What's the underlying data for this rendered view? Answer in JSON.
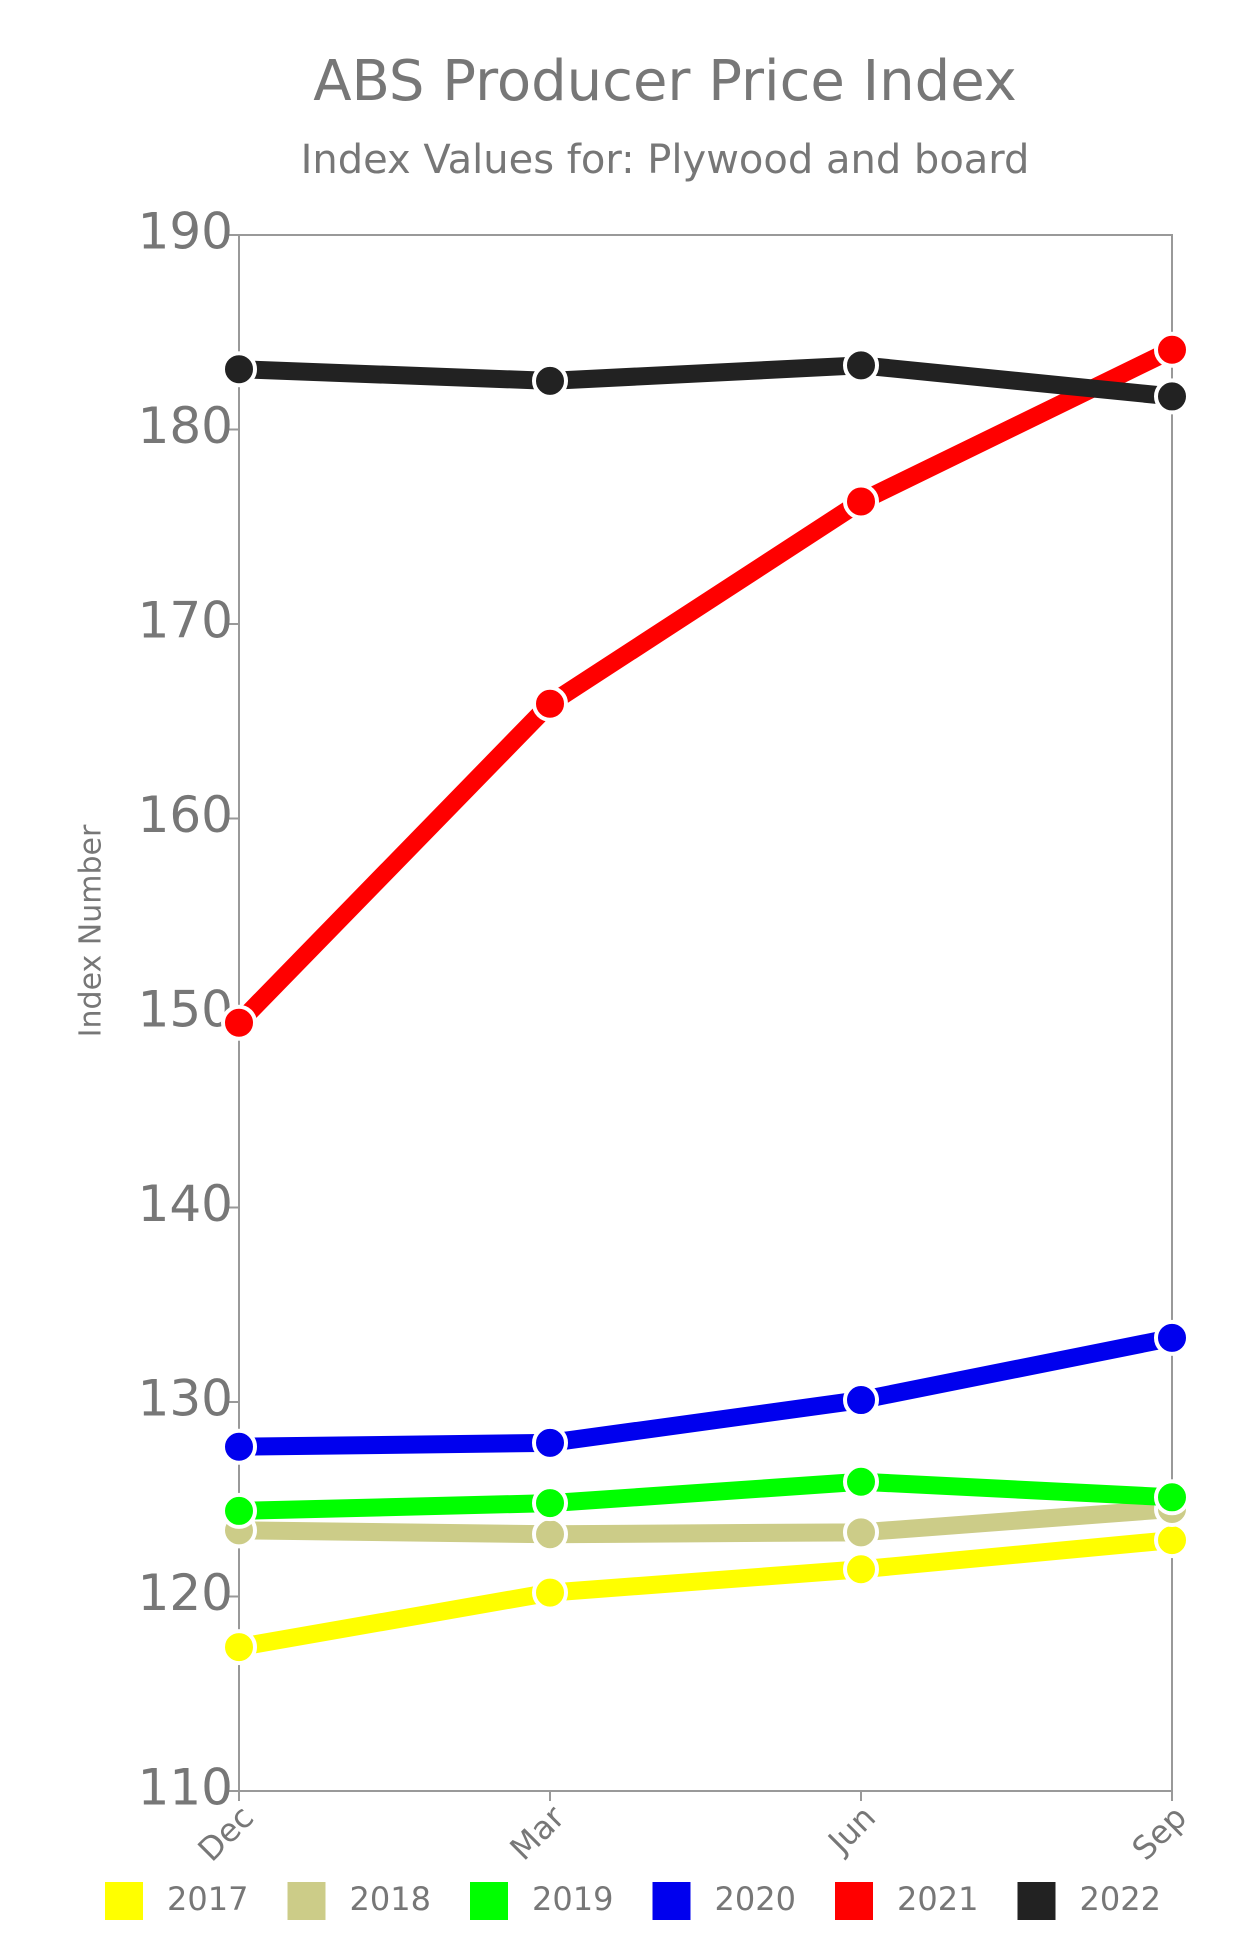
{
  "chart_data": {
    "type": "line",
    "title": "ABS Producer Price Index",
    "subtitle": "Index Values for: Plywood and board",
    "y_label": "Index Number",
    "categories": [
      "Dec",
      "Mar",
      "Jun",
      "Sep"
    ],
    "series": [
      {
        "name": "2017",
        "color": "#ffff00",
        "values": [
          117.4,
          120.2,
          121.4,
          122.9
        ]
      },
      {
        "name": "2018",
        "color": "#cccc88",
        "values": [
          123.4,
          123.2,
          123.3,
          124.5
        ]
      },
      {
        "name": "2019",
        "color": "#00ff00",
        "values": [
          124.4,
          124.8,
          125.9,
          125.1
        ]
      },
      {
        "name": "2020",
        "color": "#0000ee",
        "values": [
          127.7,
          127.9,
          130.1,
          133.3
        ]
      },
      {
        "name": "2021",
        "color": "#ff0000",
        "values": [
          149.5,
          165.9,
          176.3,
          184.1
        ]
      },
      {
        "name": "2022",
        "color": "#222222",
        "values": [
          183.1,
          182.5,
          183.3,
          181.7
        ]
      }
    ],
    "ylim": [
      110,
      190
    ],
    "yticks": [
      110,
      120,
      130,
      140,
      150,
      160,
      170,
      180,
      190
    ]
  }
}
